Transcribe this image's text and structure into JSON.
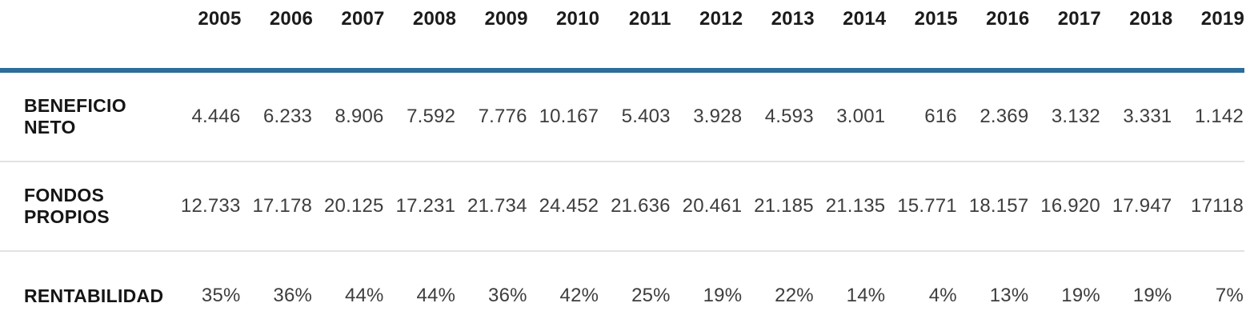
{
  "table": {
    "corner_label": "",
    "years": [
      "2005",
      "2006",
      "2007",
      "2008",
      "2009",
      "2010",
      "2011",
      "2012",
      "2013",
      "2014",
      "2015",
      "2016",
      "2017",
      "2018",
      "2019"
    ],
    "rows": [
      {
        "label": "BENEFICIO NETO",
        "values": [
          "4.446",
          "6.233",
          "8.906",
          "7.592",
          "7.776",
          "10.167",
          "5.403",
          "3.928",
          "4.593",
          "3.001",
          "616",
          "2.369",
          "3.132",
          "3.331",
          "1.142"
        ]
      },
      {
        "label": "FONDOS PROPIOS",
        "values": [
          "12.733",
          "17.178",
          "20.125",
          "17.231",
          "21.734",
          "24.452",
          "21.636",
          "20.461",
          "21.185",
          "21.135",
          "15.771",
          "18.157",
          "16.920",
          "17.947",
          "17118"
        ]
      },
      {
        "label": "RENTABILIDAD",
        "values": [
          "35%",
          "36%",
          "44%",
          "44%",
          "36%",
          "42%",
          "25%",
          "19%",
          "22%",
          "14%",
          "4%",
          "13%",
          "19%",
          "19%",
          "7%"
        ]
      }
    ]
  },
  "colors": {
    "accent_line": "#2c6d99",
    "separator": "#e2e2e2",
    "bottom_line": "#d9d9d9",
    "header_text": "#1b1b1b",
    "label_text": "#151515",
    "value_text": "#3d3d3d"
  },
  "chart_data": {
    "type": "table",
    "title": "",
    "categories": [
      2005,
      2006,
      2007,
      2008,
      2009,
      2010,
      2011,
      2012,
      2013,
      2014,
      2015,
      2016,
      2017,
      2018,
      2019
    ],
    "series": [
      {
        "name": "BENEFICIO NETO",
        "values": [
          4446,
          6233,
          8906,
          7592,
          7776,
          10167,
          5403,
          3928,
          4593,
          3001,
          616,
          2369,
          3132,
          3331,
          1142
        ]
      },
      {
        "name": "FONDOS PROPIOS",
        "values": [
          12733,
          17178,
          20125,
          17231,
          21734,
          24452,
          21636,
          20461,
          21185,
          21135,
          15771,
          18157,
          16920,
          17947,
          17118
        ]
      },
      {
        "name": "RENTABILIDAD (%)",
        "values": [
          35,
          36,
          44,
          44,
          36,
          42,
          25,
          19,
          22,
          14,
          4,
          13,
          19,
          19,
          7
        ]
      }
    ],
    "layout": {
      "header_rule_color": "#2c6d99",
      "grid": "horizontal-separators",
      "legend": "none"
    }
  }
}
